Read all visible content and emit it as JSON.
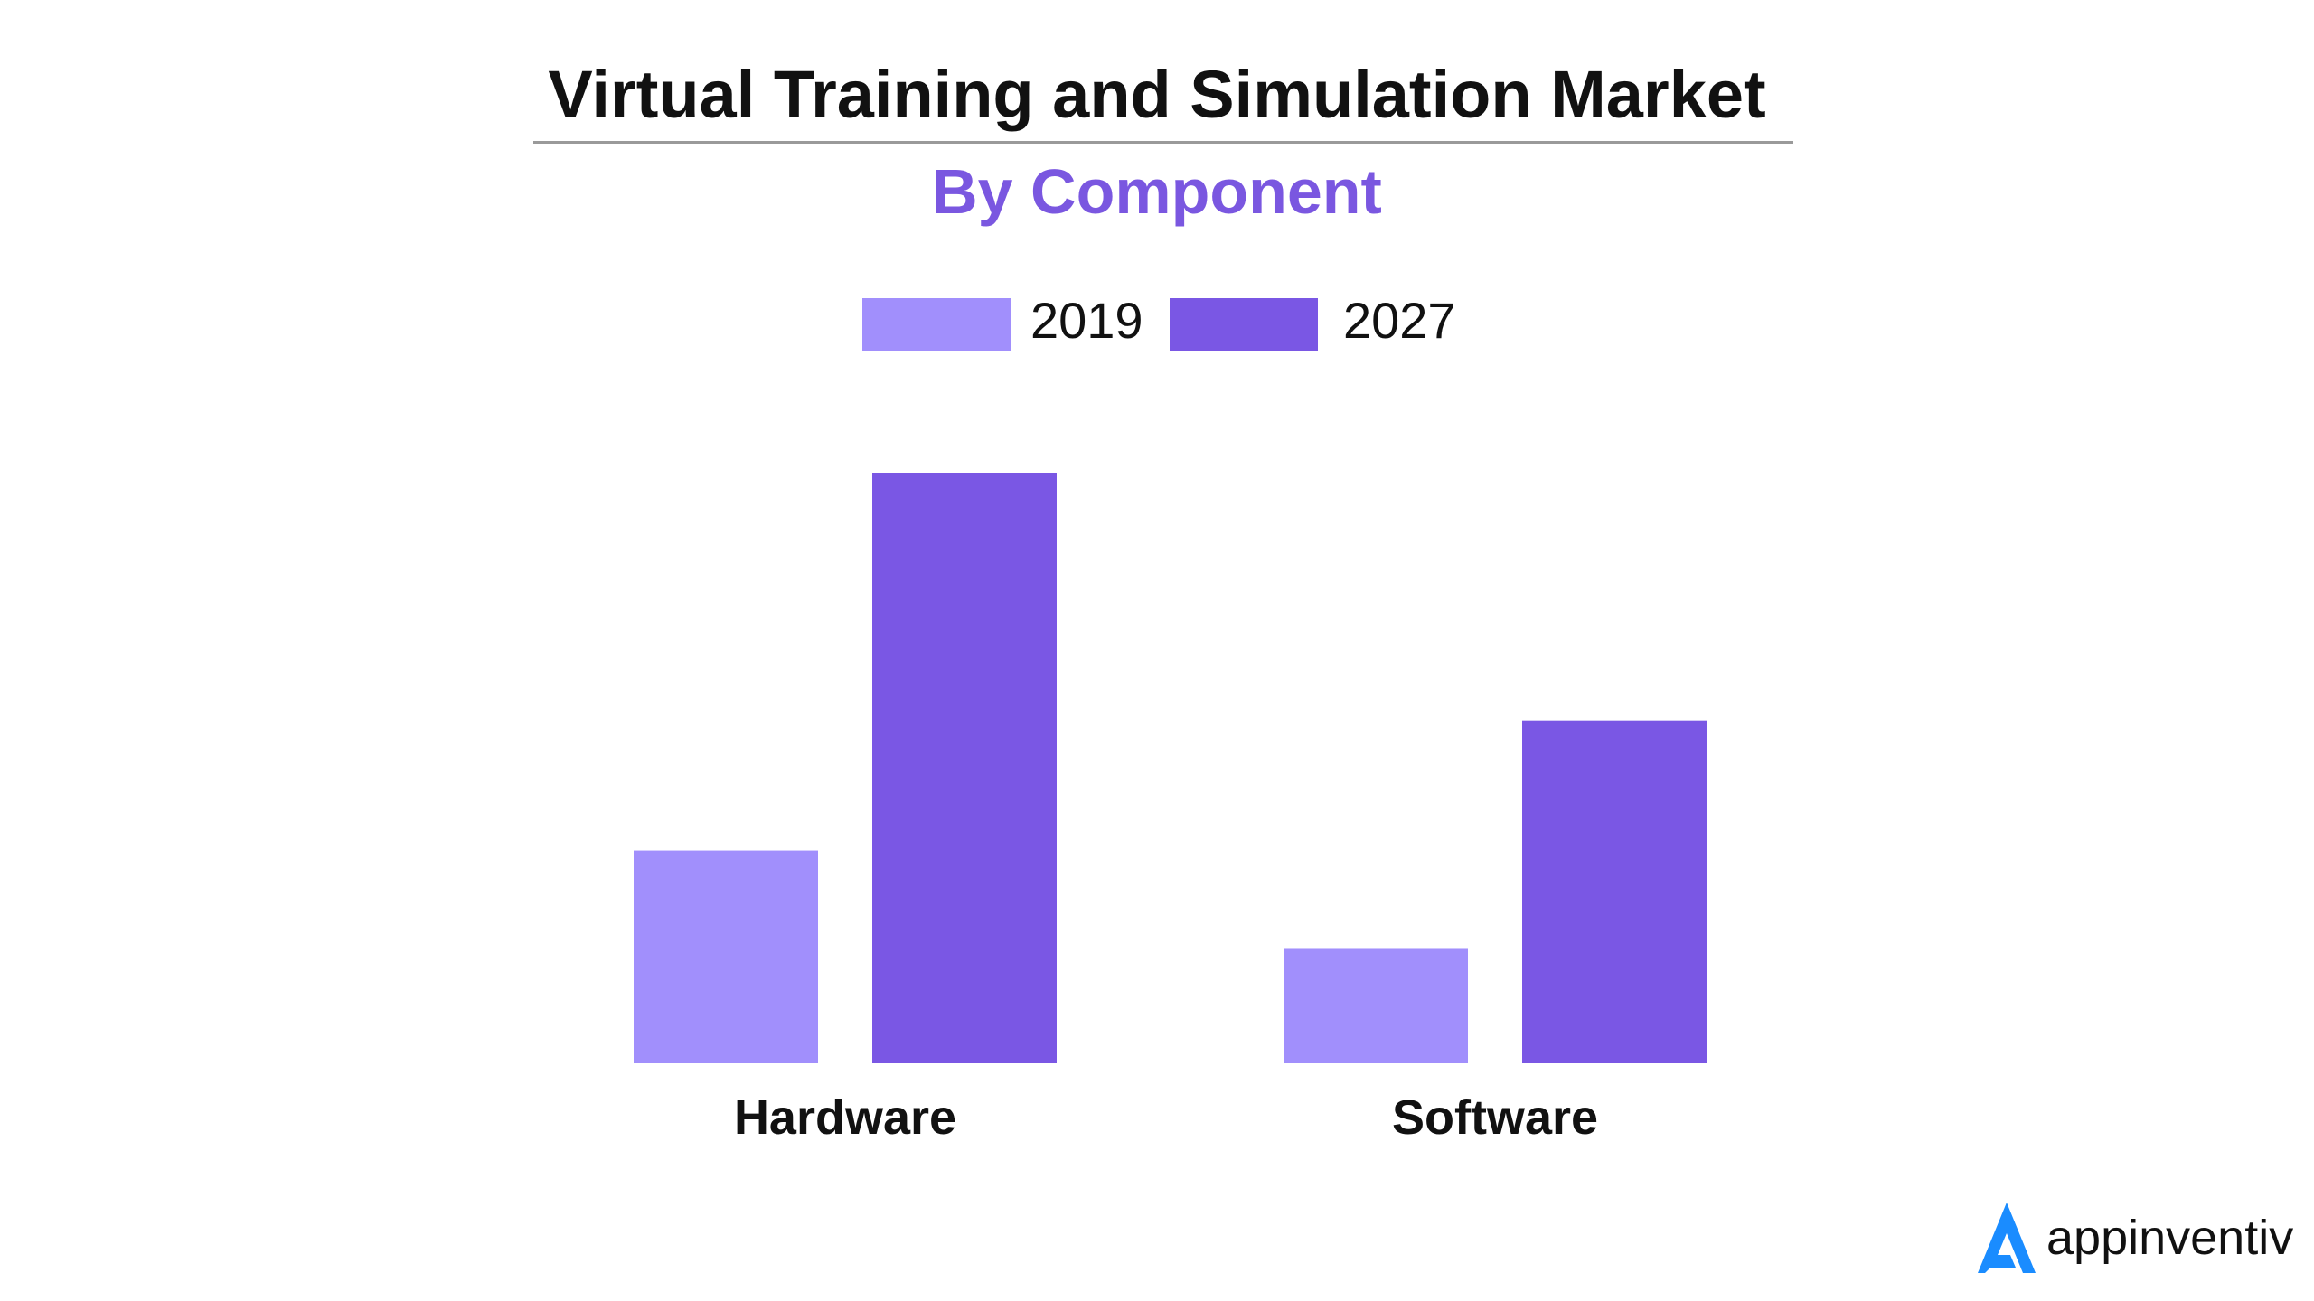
{
  "chart_data": {
    "type": "bar",
    "title": "Virtual Training and Simulation Market",
    "subtitle": "By Component",
    "categories": [
      "Hardware",
      "Software"
    ],
    "series": [
      {
        "name": "2019",
        "values": [
          36,
          19.5
        ],
        "color": "#a18ffc"
      },
      {
        "name": "2027",
        "values": [
          100,
          58
        ],
        "color": "#7a57e4"
      }
    ],
    "ylim": [
      0,
      100
    ],
    "grid": false,
    "legend_position": "top-center"
  },
  "brand": {
    "name": "appinventiv",
    "logo_icon": "appinventiv-logo-icon",
    "logo_color": "#1a8cff"
  }
}
